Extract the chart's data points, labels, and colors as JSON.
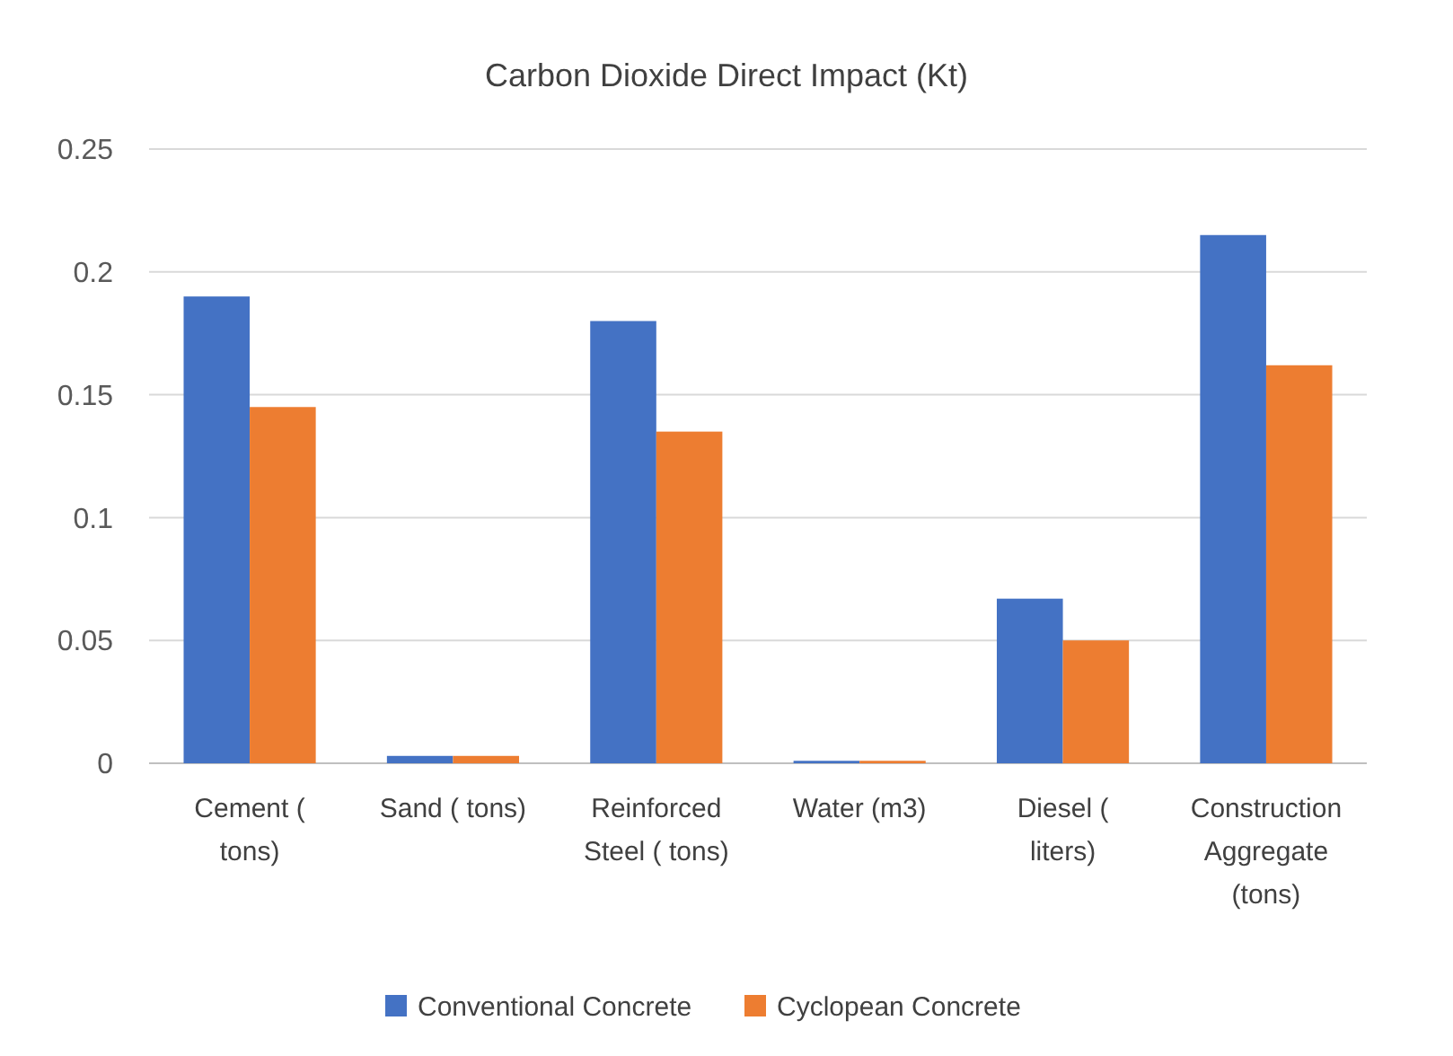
{
  "chart_data": {
    "type": "bar",
    "title": "Carbon Dioxide Direct Impact (Kt)",
    "categories": [
      "Cement ( tons)",
      "Sand ( tons)",
      "Reinforced Steel ( tons)",
      "Water (m3)",
      "Diesel ( liters)",
      "Construction Aggregate (tons)"
    ],
    "series": [
      {
        "name": "Conventional Concrete",
        "color": "#4472c4",
        "values": [
          0.19,
          0.003,
          0.18,
          0.001,
          0.067,
          0.215
        ]
      },
      {
        "name": "Cyclopean Concrete",
        "color": "#ed7d31",
        "values": [
          0.145,
          0.003,
          0.135,
          0.001,
          0.05,
          0.162
        ]
      }
    ],
    "ylim": [
      0,
      0.25
    ],
    "yticks": [
      0,
      0.05,
      0.1,
      0.15,
      0.2,
      0.25
    ],
    "grid": "y",
    "legend": "bottom"
  }
}
